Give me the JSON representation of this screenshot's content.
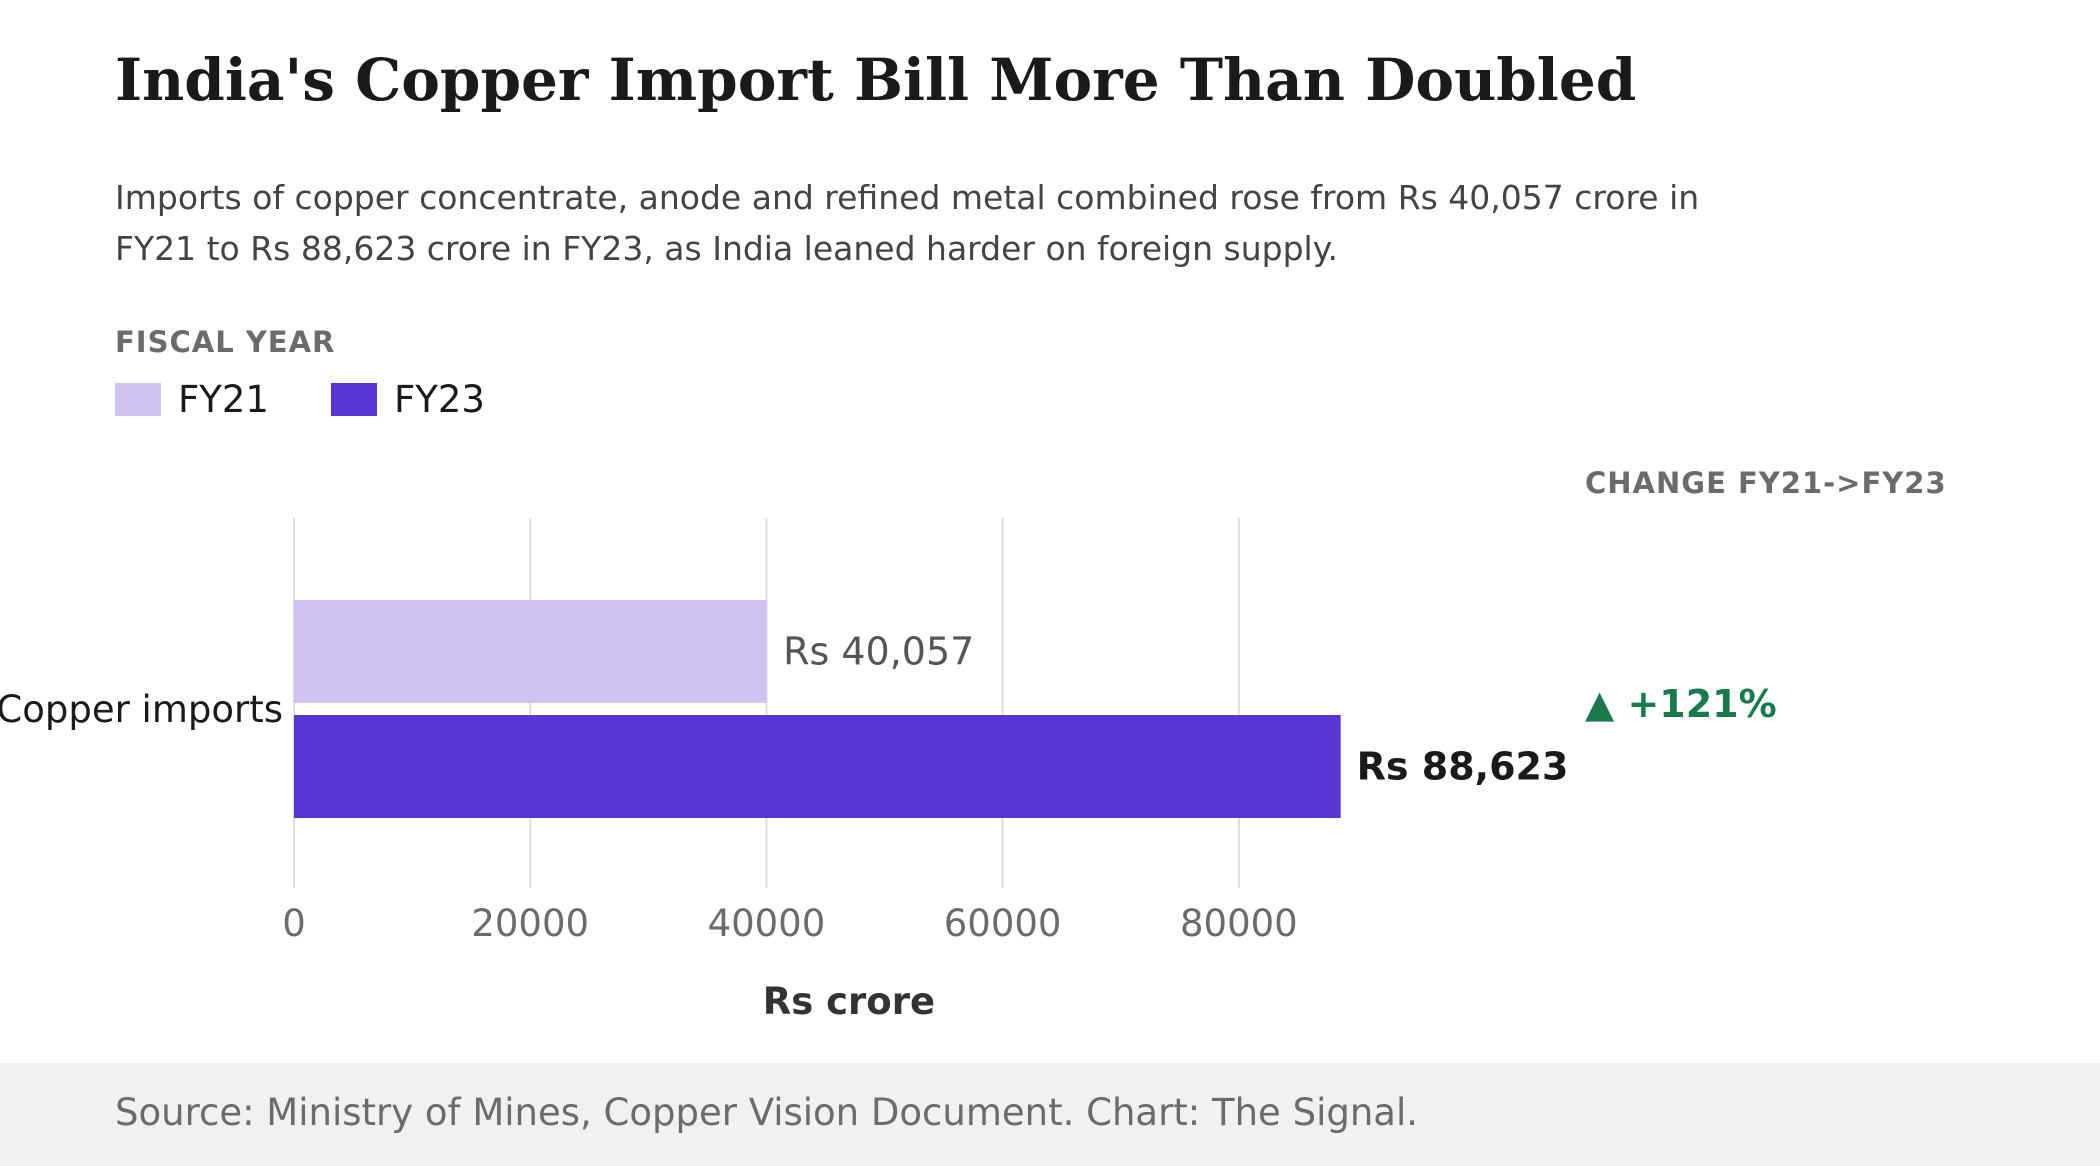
{
  "header": {
    "title": "India's Copper Import Bill More Than Doubled",
    "subtitle": "Imports of copper concentrate, anode and refined metal combined rose from Rs 40,057 crore in FY21 to Rs 88,623 crore in FY23, as India leaned harder on foreign supply."
  },
  "legend": {
    "title": "FISCAL YEAR",
    "items": [
      {
        "label": "FY21",
        "color": "#d0c4f0"
      },
      {
        "label": "FY23",
        "color": "#5a35d6"
      }
    ]
  },
  "change": {
    "header": "CHANGE FY21->FY23",
    "value": "▲ +121%"
  },
  "chart_data": {
    "type": "bar",
    "orientation": "horizontal",
    "categories": [
      "Copper imports"
    ],
    "series": [
      {
        "name": "FY21",
        "values": [
          40057
        ],
        "label": "Rs 40,057",
        "color": "#d0c4f0"
      },
      {
        "name": "FY23",
        "values": [
          88623
        ],
        "label": "Rs 88,623",
        "color": "#5a35d6"
      }
    ],
    "xlabel": "Rs crore",
    "xlim": [
      0,
      95000
    ],
    "xticks": [
      0,
      20000,
      40000,
      60000,
      80000
    ],
    "grid": true,
    "legend_placement": "top-left"
  },
  "footer": {
    "source": "Source: Ministry of Mines, Copper Vision Document. Chart: The Signal."
  }
}
